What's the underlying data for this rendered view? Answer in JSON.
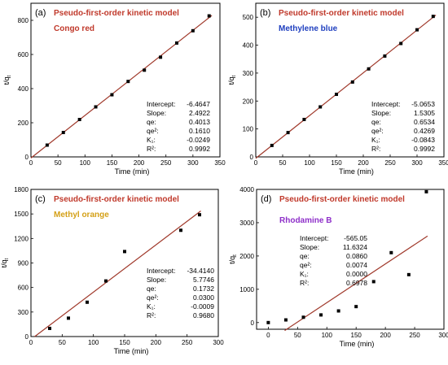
{
  "panels": [
    {
      "label": "(a)",
      "title": "Pseudo-first-order kinetic model",
      "dye": "Congo red",
      "dye_color": "#c0392b",
      "ylabel": "t/q",
      "ylabel_sub": "t",
      "xlabel": "Time (min)",
      "stats": [
        {
          "name": "Intercept:",
          "value": "-6.4647"
        },
        {
          "name": "Slope:",
          "value": "2.4922"
        },
        {
          "name": "qe:",
          "value": "0.4013"
        },
        {
          "name": "qe²:",
          "value": "0.1610"
        },
        {
          "name": "K₁:",
          "value": "-0.0249"
        },
        {
          "name": "R²:",
          "value": "0.9992"
        }
      ]
    },
    {
      "label": "(b)",
      "title": "Pseudo-first-order kinetic model",
      "dye": "Methylene blue",
      "dye_color": "#1f3fbf",
      "ylabel": "t/q",
      "ylabel_sub": "t",
      "xlabel": "Time (min)",
      "stats": [
        {
          "name": "Intercept:",
          "value": "-5.0653"
        },
        {
          "name": "Slope:",
          "value": "1.5305"
        },
        {
          "name": "qe:",
          "value": "0.6534"
        },
        {
          "name": "qe²:",
          "value": "0.4269"
        },
        {
          "name": "K₁:",
          "value": "-0.0843"
        },
        {
          "name": "R²:",
          "value": "0.9992"
        }
      ]
    },
    {
      "label": "(c)",
      "title": "Pseudo-first-order kinetic model",
      "dye": "Methyl orange",
      "dye_color": "#d4a017",
      "ylabel": "t/q",
      "ylabel_sub": "t",
      "xlabel": "Time (min)",
      "stats": [
        {
          "name": "Intercept:",
          "value": "-34.4140"
        },
        {
          "name": "Slope:",
          "value": "5.7746"
        },
        {
          "name": "qe:",
          "value": "0.1732"
        },
        {
          "name": "qe²:",
          "value": "0.0300"
        },
        {
          "name": "K₁:",
          "value": "-0.0009"
        },
        {
          "name": "R²:",
          "value": "0.9680"
        }
      ]
    },
    {
      "label": "(d)",
      "title": "Pseudo-first-order kinetic model",
      "dye": "Rhodamine B",
      "dye_color": "#8e2fc9",
      "ylabel": "t/q",
      "ylabel_sub": "t",
      "xlabel": "Time (min)",
      "stats": [
        {
          "name": "Intercept:",
          "value": "-565.05"
        },
        {
          "name": "Slope:",
          "value": "11.6324"
        },
        {
          "name": "qe:",
          "value": "0.0860"
        },
        {
          "name": "qe²:",
          "value": "0.0074"
        },
        {
          "name": "K₁:",
          "value": "0.0000"
        },
        {
          "name": "R²:",
          "value": "0.6978"
        }
      ]
    }
  ],
  "chart_data": [
    {
      "type": "scatter",
      "xlim": [
        0,
        350
      ],
      "ylim": [
        0,
        900
      ],
      "xticks": [
        0,
        50,
        100,
        150,
        200,
        250,
        300,
        350
      ],
      "yticks": [
        0,
        200,
        400,
        600,
        800
      ],
      "x": [
        30,
        60,
        90,
        120,
        150,
        180,
        210,
        240,
        270,
        300,
        330
      ],
      "y": [
        69,
        143,
        219,
        293,
        364,
        442,
        508,
        584,
        667,
        739,
        826
      ],
      "fit": {
        "slope": 2.4922,
        "intercept": -6.4647,
        "x_range": [
          0,
          335
        ]
      },
      "line_color": "#a0392b"
    },
    {
      "type": "scatter",
      "xlim": [
        0,
        350
      ],
      "ylim": [
        0,
        550
      ],
      "xticks": [
        0,
        50,
        100,
        150,
        200,
        250,
        300,
        350
      ],
      "yticks": [
        0,
        100,
        200,
        300,
        400,
        500
      ],
      "x": [
        30,
        60,
        90,
        120,
        150,
        180,
        210,
        240,
        270,
        300,
        330
      ],
      "y": [
        41,
        87,
        134,
        179,
        224,
        268,
        315,
        361,
        406,
        455,
        503
      ],
      "fit": {
        "slope": 1.5305,
        "intercept": -5.0653,
        "x_range": [
          0,
          335
        ]
      },
      "line_color": "#a0392b"
    },
    {
      "type": "scatter",
      "xlim": [
        0,
        300
      ],
      "ylim": [
        0,
        1800
      ],
      "xticks": [
        0,
        50,
        100,
        150,
        200,
        250,
        300
      ],
      "yticks": [
        0,
        300,
        600,
        900,
        1200,
        1500,
        1800
      ],
      "x": [
        30,
        60,
        90,
        120,
        150,
        240,
        270
      ],
      "y": [
        100,
        225,
        420,
        680,
        1040,
        1300,
        1490
      ],
      "fit": {
        "slope": 5.7746,
        "intercept": -34.414,
        "x_range": [
          6,
          272
        ]
      },
      "line_color": "#a0392b"
    },
    {
      "type": "scatter",
      "xlim": [
        -20,
        300
      ],
      "ylim": [
        -200,
        4000
      ],
      "xticks": [
        0,
        50,
        100,
        150,
        200,
        250,
        300
      ],
      "yticks": [
        0,
        1000,
        2000,
        3000,
        4000
      ],
      "x": [
        0,
        30,
        60,
        90,
        120,
        150,
        180,
        210,
        240,
        270
      ],
      "y": [
        0,
        80,
        160,
        230,
        350,
        480,
        1230,
        2100,
        1440,
        3930
      ],
      "fit": {
        "slope": 11.6324,
        "intercept": -565.05,
        "x_range": [
          28,
          272
        ]
      },
      "line_color": "#a0392b"
    }
  ]
}
